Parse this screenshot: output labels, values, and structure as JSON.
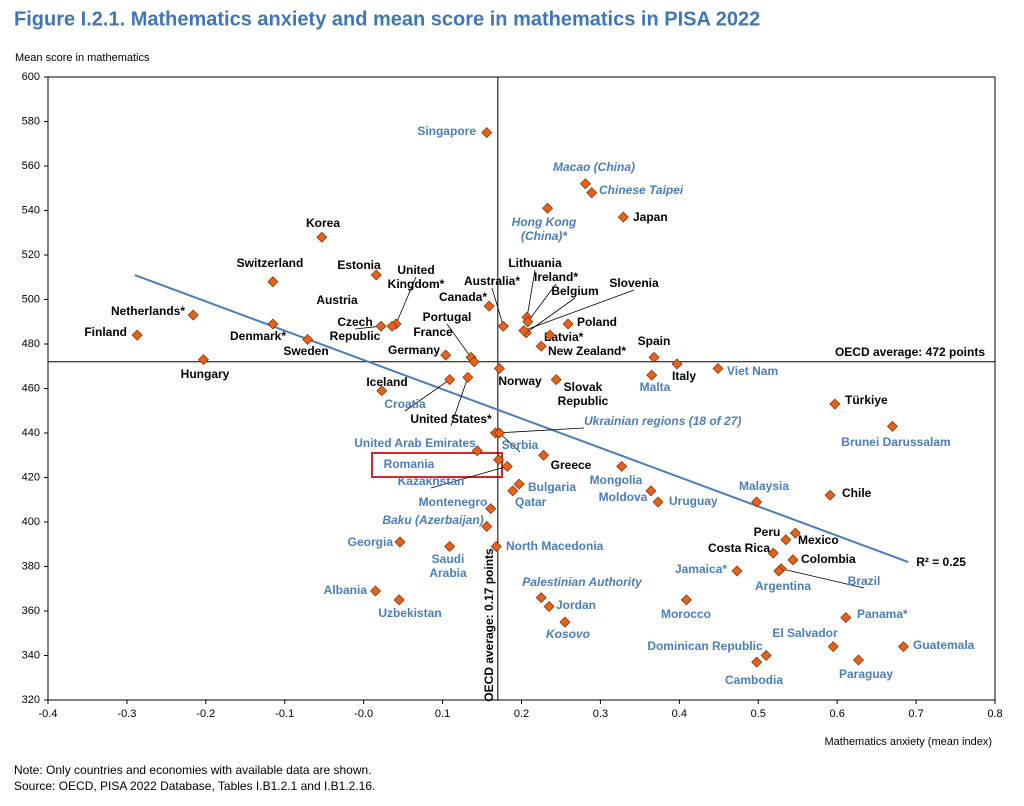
{
  "chart_data": {
    "type": "scatter",
    "title": "Figure I.2.1. Mathematics anxiety and mean score in mathematics in PISA 2022",
    "y_label": "Mean score in mathematics",
    "x_label": "Mathematics anxiety (mean index)",
    "notes": [
      "Note: Only countries and economies with available data are shown.",
      "Source: OECD, PISA 2022 Database, Tables I.B1.2.1 and I.B1.2.16."
    ],
    "marker_color": "#e8611a",
    "axis_color": "#000",
    "xlim": [
      -0.4,
      0.8
    ],
    "ylim": [
      320,
      600
    ],
    "xticks": [
      -0.4,
      -0.3,
      -0.2,
      -0.1,
      {
        "value": 0,
        "label": "-0.0"
      },
      0.1,
      0.2,
      0.3,
      0.4,
      0.5,
      0.6,
      0.7,
      0.8
    ],
    "yticks": [
      320,
      340,
      360,
      380,
      400,
      420,
      440,
      460,
      480,
      500,
      520,
      540,
      560,
      580,
      600
    ],
    "reference_lines": [
      {
        "axis": "y",
        "value": 472,
        "label": "OECD average: 472 points"
      },
      {
        "axis": "x",
        "value": 0.17,
        "label": "OECD average: 0.17 points"
      }
    ],
    "trend": {
      "x": [
        -0.29,
        0.69
      ],
      "y": [
        511,
        382
      ],
      "label": "R² = 0.25",
      "color": "#4a7ebb"
    },
    "highlight": "Romania",
    "points": [
      {
        "name": [
          "Singapore"
        ],
        "x": 0.156,
        "y": 575,
        "label_color": "#4a7ebb"
      },
      {
        "name": [
          "Macao (China)"
        ],
        "x": 0.281,
        "y": 552,
        "label_color": "#4a7ebb",
        "italic": true
      },
      {
        "name": [
          "Chinese Taipei"
        ],
        "x": 0.289,
        "y": 548,
        "label_color": "#4a7ebb",
        "italic": true
      },
      {
        "name": [
          "Hong Kong",
          "(China)*"
        ],
        "x": 0.233,
        "y": 541,
        "label_color": "#4a7ebb",
        "italic": true
      },
      {
        "name": [
          "Japan"
        ],
        "x": 0.329,
        "y": 537,
        "label_color": "#000"
      },
      {
        "name": [
          "Korea"
        ],
        "x": -0.053,
        "y": 528,
        "label_color": "#000"
      },
      {
        "name": [
          "Switzerland"
        ],
        "x": -0.115,
        "y": 508,
        "label_color": "#000"
      },
      {
        "name": [
          "Estonia"
        ],
        "x": 0.016,
        "y": 511,
        "label_color": "#000"
      },
      {
        "name": [
          "United",
          "Kingdom*"
        ],
        "x": 0.041,
        "y": 489,
        "label_color": "#000"
      },
      {
        "name": [
          "Austria"
        ],
        "x": 0.036,
        "y": 488,
        "label_color": "#000"
      },
      {
        "name": [
          "Czech",
          "Republic"
        ],
        "x": 0.022,
        "y": 488,
        "label_color": "#000"
      },
      {
        "name": [
          "Netherlands*"
        ],
        "x": -0.216,
        "y": 493,
        "label_color": "#000"
      },
      {
        "name": [
          "Finland"
        ],
        "x": -0.287,
        "y": 484,
        "label_color": "#000"
      },
      {
        "name": [
          "Denmark*"
        ],
        "x": -0.115,
        "y": 489,
        "label_color": "#000"
      },
      {
        "name": [
          "Sweden"
        ],
        "x": -0.071,
        "y": 482,
        "label_color": "#000"
      },
      {
        "name": [
          "Hungary"
        ],
        "x": -0.203,
        "y": 473,
        "label_color": "#000"
      },
      {
        "name": [
          "Germany"
        ],
        "x": 0.104,
        "y": 475,
        "label_color": "#000"
      },
      {
        "name": [
          "France"
        ],
        "x": 0.136,
        "y": 474,
        "label_color": "#000"
      },
      {
        "name": [
          "Portugal"
        ],
        "x": 0.14,
        "y": 472,
        "label_color": "#000"
      },
      {
        "name": [
          "Canada*"
        ],
        "x": 0.159,
        "y": 497,
        "label_color": "#000"
      },
      {
        "name": [
          "Australia*"
        ],
        "x": 0.177,
        "y": 488,
        "label_color": "#000"
      },
      {
        "name": [
          "Lithuania"
        ],
        "x": 0.207,
        "y": 492,
        "label_color": "#000"
      },
      {
        "name": [
          "Ireland*"
        ],
        "x": 0.208,
        "y": 490,
        "label_color": "#000"
      },
      {
        "name": [
          "Belgium"
        ],
        "x": 0.206,
        "y": 485,
        "label_color": "#000"
      },
      {
        "name": [
          "Slovenia"
        ],
        "x": 0.203,
        "y": 486,
        "label_color": "#000"
      },
      {
        "name": [
          "Poland"
        ],
        "x": 0.259,
        "y": 489,
        "label_color": "#000"
      },
      {
        "name": [
          "Latvia*"
        ],
        "x": 0.236,
        "y": 484,
        "label_color": "#000"
      },
      {
        "name": [
          "New Zealand*"
        ],
        "x": 0.225,
        "y": 479,
        "label_color": "#000"
      },
      {
        "name": [
          "Spain"
        ],
        "x": 0.368,
        "y": 474,
        "label_color": "#000"
      },
      {
        "name": [
          "Italy"
        ],
        "x": 0.397,
        "y": 471,
        "label_color": "#000"
      },
      {
        "name": [
          "Malta"
        ],
        "x": 0.365,
        "y": 466,
        "label_color": "#4a7ebb"
      },
      {
        "name": [
          "Viet Nam"
        ],
        "x": 0.449,
        "y": 469,
        "label_color": "#4a7ebb"
      },
      {
        "name": [
          "Norway"
        ],
        "x": 0.172,
        "y": 469,
        "label_color": "#000"
      },
      {
        "name": [
          "Slovak",
          "Republic"
        ],
        "x": 0.244,
        "y": 464,
        "label_color": "#000"
      },
      {
        "name": [
          "Iceland"
        ],
        "x": 0.023,
        "y": 459,
        "label_color": "#000"
      },
      {
        "name": [
          "Croatia"
        ],
        "x": 0.109,
        "y": 464,
        "label_color": "#4a7ebb"
      },
      {
        "name": [
          "United States*"
        ],
        "x": 0.132,
        "y": 465,
        "label_color": "#000"
      },
      {
        "name": [
          "Ukrainian regions (18 of 27)"
        ],
        "x": 0.167,
        "y": 440,
        "label_color": "#4a7ebb",
        "italic": true
      },
      {
        "name": [
          "Türkiye"
        ],
        "x": 0.597,
        "y": 453,
        "label_color": "#000"
      },
      {
        "name": [
          "Brunei Darussalam"
        ],
        "x": 0.67,
        "y": 443,
        "label_color": "#4a7ebb"
      },
      {
        "name": [
          "United Arab Emirates"
        ],
        "x": 0.144,
        "y": 432,
        "label_color": "#4a7ebb"
      },
      {
        "name": [
          "Serbia"
        ],
        "x": 0.172,
        "y": 440,
        "label_color": "#4a7ebb"
      },
      {
        "name": [
          "Romania"
        ],
        "x": 0.171,
        "y": 428,
        "label_color": "#4a7ebb"
      },
      {
        "name": [
          "Kazakhstan"
        ],
        "x": 0.182,
        "y": 425,
        "label_color": "#4a7ebb"
      },
      {
        "name": [
          "Greece"
        ],
        "x": 0.228,
        "y": 430,
        "label_color": "#000"
      },
      {
        "name": [
          "Mongolia"
        ],
        "x": 0.327,
        "y": 425,
        "label_color": "#4a7ebb"
      },
      {
        "name": [
          "Bulgaria"
        ],
        "x": 0.197,
        "y": 417,
        "label_color": "#4a7ebb"
      },
      {
        "name": [
          "Qatar"
        ],
        "x": 0.189,
        "y": 414,
        "label_color": "#4a7ebb"
      },
      {
        "name": [
          "Moldova"
        ],
        "x": 0.364,
        "y": 414,
        "label_color": "#4a7ebb"
      },
      {
        "name": [
          "Uruguay"
        ],
        "x": 0.373,
        "y": 409,
        "label_color": "#4a7ebb"
      },
      {
        "name": [
          "Malaysia"
        ],
        "x": 0.498,
        "y": 409,
        "label_color": "#4a7ebb"
      },
      {
        "name": [
          "Chile"
        ],
        "x": 0.591,
        "y": 412,
        "label_color": "#000"
      },
      {
        "name": [
          "Montenegro"
        ],
        "x": 0.161,
        "y": 406,
        "label_color": "#4a7ebb"
      },
      {
        "name": [
          "Baku (Azerbaijan)"
        ],
        "x": 0.156,
        "y": 398,
        "label_color": "#4a7ebb",
        "italic": true
      },
      {
        "name": [
          "Georgia"
        ],
        "x": 0.046,
        "y": 391,
        "label_color": "#4a7ebb"
      },
      {
        "name": [
          "Peru"
        ],
        "x": 0.535,
        "y": 392,
        "label_color": "#000"
      },
      {
        "name": [
          "Mexico"
        ],
        "x": 0.547,
        "y": 395,
        "label_color": "#000"
      },
      {
        "name": [
          "Costa Rica"
        ],
        "x": 0.519,
        "y": 386,
        "label_color": "#000"
      },
      {
        "name": [
          "Colombia"
        ],
        "x": 0.544,
        "y": 383,
        "label_color": "#000"
      },
      {
        "name": [
          "Brazil"
        ],
        "x": 0.529,
        "y": 379,
        "label_color": "#4a7ebb"
      },
      {
        "name": [
          "Argentina"
        ],
        "x": 0.526,
        "y": 378,
        "label_color": "#4a7ebb"
      },
      {
        "name": [
          "Jamaica*"
        ],
        "x": 0.473,
        "y": 378,
        "label_color": "#4a7ebb"
      },
      {
        "name": [
          "Saudi",
          "Arabia"
        ],
        "x": 0.109,
        "y": 389,
        "label_color": "#4a7ebb"
      },
      {
        "name": [
          "North Macedonia"
        ],
        "x": 0.168,
        "y": 389,
        "label_color": "#4a7ebb"
      },
      {
        "name": [
          "Albania"
        ],
        "x": 0.015,
        "y": 369,
        "label_color": "#4a7ebb"
      },
      {
        "name": [
          "Uzbekistan"
        ],
        "x": 0.045,
        "y": 365,
        "label_color": "#4a7ebb"
      },
      {
        "name": [
          "Palestinian Authority"
        ],
        "x": 0.225,
        "y": 366,
        "label_color": "#4a7ebb",
        "italic": true
      },
      {
        "name": [
          "Jordan"
        ],
        "x": 0.235,
        "y": 362,
        "label_color": "#4a7ebb"
      },
      {
        "name": [
          "Kosovo"
        ],
        "x": 0.255,
        "y": 355,
        "label_color": "#4a7ebb",
        "italic": true
      },
      {
        "name": [
          "Morocco"
        ],
        "x": 0.409,
        "y": 365,
        "label_color": "#4a7ebb"
      },
      {
        "name": [
          "Panama*"
        ],
        "x": 0.611,
        "y": 357,
        "label_color": "#4a7ebb"
      },
      {
        "name": [
          "El Salvador"
        ],
        "x": 0.595,
        "y": 344,
        "label_color": "#4a7ebb"
      },
      {
        "name": [
          "Guatemala"
        ],
        "x": 0.684,
        "y": 344,
        "label_color": "#4a7ebb"
      },
      {
        "name": [
          "Dominican Republic"
        ],
        "x": 0.51,
        "y": 340,
        "label_color": "#4a7ebb"
      },
      {
        "name": [
          "Cambodia"
        ],
        "x": 0.498,
        "y": 337,
        "label_color": "#4a7ebb"
      },
      {
        "name": [
          "Paraguay"
        ],
        "x": 0.627,
        "y": 338,
        "label_color": "#4a7ebb"
      }
    ]
  }
}
